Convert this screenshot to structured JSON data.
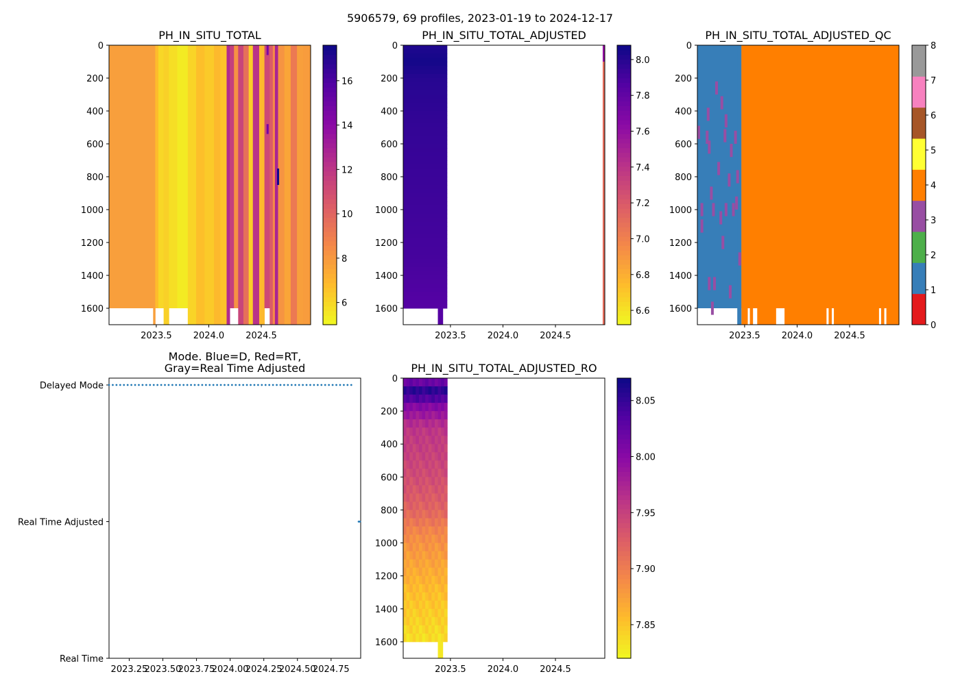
{
  "suptitle": "5906579, 69 profiles, 2023-01-19 to 2024-12-17",
  "chart_data": [
    {
      "id": "raw",
      "type": "heatmap",
      "title": "PH_IN_SITU_TOTAL",
      "xlabel": "",
      "ylabel": "",
      "xlim": [
        2023.05,
        2024.97
      ],
      "ylim": [
        1700,
        0
      ],
      "x_ticks": [
        2023.5,
        2024.0,
        2024.5
      ],
      "x_tick_labels": [
        "2023.5",
        "2024.0",
        "2024.5"
      ],
      "y_ticks": [
        0,
        200,
        400,
        600,
        800,
        1000,
        1200,
        1400,
        1600
      ],
      "y_tick_labels": [
        "0",
        "200",
        "400",
        "600",
        "800",
        "1000",
        "1200",
        "1400",
        "1600"
      ],
      "colormap": "plasma_r",
      "colorbar": {
        "min": 5.0,
        "max": 17.6,
        "ticks": [
          6,
          8,
          10,
          12,
          14,
          16
        ],
        "tick_labels": [
          "6",
          "8",
          "10",
          "12",
          "14",
          "16"
        ]
      },
      "columns": [
        {
          "x0": 2023.05,
          "x1": 2023.47,
          "value": 7.8,
          "bottom": 1600
        },
        {
          "x0": 2023.47,
          "x1": 2023.49,
          "value": 7.8,
          "bottom": 1700
        },
        {
          "x0": 2023.49,
          "x1": 2023.52,
          "value": 6.8,
          "bottom": 1600
        },
        {
          "x0": 2023.52,
          "x1": 2023.57,
          "value": 6.0,
          "bottom": 1600
        },
        {
          "x0": 2023.57,
          "x1": 2023.62,
          "value": 6.2,
          "bottom": 1700
        },
        {
          "x0": 2023.62,
          "x1": 2023.7,
          "value": 5.8,
          "bottom": 1600
        },
        {
          "x0": 2023.7,
          "x1": 2023.8,
          "value": 5.4,
          "bottom": 1600
        },
        {
          "x0": 2023.8,
          "x1": 2023.88,
          "value": 6.1,
          "bottom": 1700
        },
        {
          "x0": 2023.88,
          "x1": 2023.96,
          "value": 6.7,
          "bottom": 1700
        },
        {
          "x0": 2023.96,
          "x1": 2024.05,
          "value": 6.4,
          "bottom": 1700
        },
        {
          "x0": 2024.05,
          "x1": 2024.11,
          "value": 6.9,
          "bottom": 1700
        },
        {
          "x0": 2024.11,
          "x1": 2024.17,
          "value": 6.6,
          "bottom": 1700
        },
        {
          "x0": 2024.17,
          "x1": 2024.2,
          "value": 12.5,
          "bottom": 1700
        },
        {
          "x0": 2024.2,
          "x1": 2024.24,
          "value": 11.6,
          "bottom": 1600
        },
        {
          "x0": 2024.24,
          "x1": 2024.28,
          "value": 8.3,
          "bottom": 1600
        },
        {
          "x0": 2024.28,
          "x1": 2024.33,
          "value": 11.4,
          "bottom": 1700
        },
        {
          "x0": 2024.33,
          "x1": 2024.38,
          "value": 9.6,
          "bottom": 1700
        },
        {
          "x0": 2024.38,
          "x1": 2024.42,
          "value": 6.3,
          "bottom": 1700
        },
        {
          "x0": 2024.42,
          "x1": 2024.48,
          "value": 12.2,
          "bottom": 1700
        },
        {
          "x0": 2024.48,
          "x1": 2024.53,
          "value": 6.9,
          "bottom": 1700
        },
        {
          "x0": 2024.53,
          "x1": 2024.58,
          "value": 11.2,
          "bottom": 1600
        },
        {
          "x0": 2024.58,
          "x1": 2024.61,
          "value": 10.4,
          "bottom": 1700
        },
        {
          "x0": 2024.61,
          "x1": 2024.63,
          "value": 8.5,
          "bottom": 1700
        },
        {
          "x0": 2024.63,
          "x1": 2024.66,
          "value": 12.8,
          "bottom": 1700
        },
        {
          "x0": 2024.66,
          "x1": 2024.72,
          "value": 8.2,
          "bottom": 1700
        },
        {
          "x0": 2024.72,
          "x1": 2024.78,
          "value": 7.6,
          "bottom": 1700
        },
        {
          "x0": 2024.78,
          "x1": 2024.84,
          "value": 9.2,
          "bottom": 1700
        },
        {
          "x0": 2024.84,
          "x1": 2024.9,
          "value": 7.8,
          "bottom": 1700
        },
        {
          "x0": 2024.9,
          "x1": 2024.97,
          "value": 7.9,
          "bottom": 1700
        }
      ],
      "highlights": [
        {
          "x0": 2024.65,
          "x1": 2024.67,
          "y0": 750,
          "y1": 850,
          "value": 17.5
        },
        {
          "x0": 2024.55,
          "x1": 2024.57,
          "y0": 480,
          "y1": 540,
          "value": 14.8
        },
        {
          "x0": 2024.55,
          "x1": 2024.57,
          "y0": 0,
          "y1": 60,
          "value": 14.5
        }
      ]
    },
    {
      "id": "adjusted",
      "type": "heatmap",
      "title": "PH_IN_SITU_TOTAL_ADJUSTED",
      "xlabel": "",
      "ylabel": "",
      "xlim": [
        2023.05,
        2024.97
      ],
      "ylim": [
        1700,
        0
      ],
      "x_ticks": [
        2023.5,
        2024.0,
        2024.5
      ],
      "x_tick_labels": [
        "2023.5",
        "2024.0",
        "2024.5"
      ],
      "y_ticks": [
        0,
        200,
        400,
        600,
        800,
        1000,
        1200,
        1400,
        1600
      ],
      "y_tick_labels": [
        "0",
        "200",
        "400",
        "600",
        "800",
        "1000",
        "1200",
        "1400",
        "1600"
      ],
      "colormap": "plasma_r",
      "colorbar": {
        "min": 6.52,
        "max": 8.08,
        "ticks": [
          6.6,
          6.8,
          7.0,
          7.2,
          7.4,
          7.6,
          7.8,
          8.0
        ],
        "tick_labels": [
          "6.6",
          "6.8",
          "7.0",
          "7.2",
          "7.4",
          "7.6",
          "7.8",
          "8.0"
        ]
      },
      "depth_profile": [
        [
          0,
          8.02
        ],
        [
          100,
          8.06
        ],
        [
          200,
          8.0
        ],
        [
          500,
          7.96
        ],
        [
          900,
          7.93
        ],
        [
          1300,
          7.9
        ],
        [
          1600,
          7.85
        ]
      ],
      "filled_x": [
        2023.05,
        2023.47
      ],
      "bottom": 1600,
      "tail": {
        "x0": 2023.38,
        "x1": 2023.43,
        "y0": 1600,
        "y1": 1700,
        "value": 7.85
      },
      "last_column": {
        "x0": 2024.95,
        "x1": 2024.97,
        "values": [
          [
            0,
            7.6
          ],
          [
            100,
            7.1
          ],
          [
            1700,
            6.9
          ]
        ]
      }
    },
    {
      "id": "qc",
      "type": "heatmap",
      "title": "PH_IN_SITU_TOTAL_ADJUSTED_QC",
      "xlabel": "",
      "ylabel": "",
      "xlim": [
        2023.05,
        2024.97
      ],
      "ylim": [
        1700,
        0
      ],
      "x_ticks": [
        2023.5,
        2024.0,
        2024.5
      ],
      "x_tick_labels": [
        "2023.5",
        "2024.0",
        "2024.5"
      ],
      "y_ticks": [
        0,
        200,
        400,
        600,
        800,
        1000,
        1200,
        1400,
        1600
      ],
      "y_tick_labels": [
        "0",
        "200",
        "400",
        "600",
        "800",
        "1000",
        "1200",
        "1400",
        "1600"
      ],
      "colorbar": {
        "min": 0,
        "max": 8,
        "ticks": [
          0,
          1,
          2,
          3,
          4,
          5,
          6,
          7,
          8
        ],
        "tick_labels": [
          "0",
          "1",
          "2",
          "3",
          "4",
          "5",
          "6",
          "7",
          "8"
        ],
        "classes": [
          "#e41a1c",
          "#377eb8",
          "#4daf4a",
          "#984ea3",
          "#ff7f00",
          "#ffff33",
          "#a65628",
          "#f781bf",
          "#999999"
        ]
      },
      "blocks": [
        {
          "x0": 2023.05,
          "x1": 2023.47,
          "flag": 1,
          "bottom": 1600
        },
        {
          "x0": 2023.43,
          "x1": 2023.47,
          "flag": 1,
          "bottom": 1700
        },
        {
          "x0": 2023.47,
          "x1": 2024.95,
          "flag": 4,
          "bottom": 1600
        },
        {
          "x0": 2023.47,
          "x1": 2024.97,
          "flag": 4,
          "bottom": 1700
        }
      ],
      "gaps": [
        [
          2023.53,
          2023.55
        ],
        [
          2023.58,
          2023.62
        ],
        [
          2023.8,
          2023.88
        ],
        [
          2024.28,
          2024.3
        ],
        [
          2024.33,
          2024.35
        ],
        [
          2024.78,
          2024.8
        ],
        [
          2024.83,
          2024.85
        ]
      ],
      "flag3_marks": [
        [
          2023.05,
          530
        ],
        [
          2023.08,
          1000
        ],
        [
          2023.08,
          1100
        ],
        [
          2023.14,
          420
        ],
        [
          2023.13,
          560
        ],
        [
          2023.15,
          620
        ],
        [
          2023.17,
          900
        ],
        [
          2023.19,
          1000
        ],
        [
          2023.15,
          1450
        ],
        [
          2023.18,
          1600
        ],
        [
          2023.22,
          260
        ],
        [
          2023.24,
          750
        ],
        [
          2023.26,
          1050
        ],
        [
          2023.27,
          350
        ],
        [
          2023.28,
          1200
        ],
        [
          2023.31,
          460
        ],
        [
          2023.31,
          1000
        ],
        [
          2023.3,
          550
        ],
        [
          2023.34,
          820
        ],
        [
          2023.35,
          1500
        ],
        [
          2023.38,
          1000
        ],
        [
          2023.4,
          560
        ],
        [
          2023.41,
          960
        ],
        [
          2023.42,
          800
        ],
        [
          2023.44,
          1300
        ],
        [
          2023.2,
          1450
        ],
        [
          2023.36,
          640
        ]
      ]
    },
    {
      "id": "mode",
      "type": "scatter",
      "title_lines": [
        "Mode. Blue=D, Red=RT,",
        "Gray=Real Time Adjusted"
      ],
      "xlabel": "",
      "ylabel": "",
      "xlim": [
        2023.1,
        2024.97
      ],
      "x_ticks": [
        2023.25,
        2023.5,
        2023.75,
        2024.0,
        2024.25,
        2024.5,
        2024.75
      ],
      "x_tick_labels": [
        "2023.25",
        "2023.50",
        "2023.75",
        "2024.00",
        "2024.25",
        "2024.50",
        "2024.75"
      ],
      "y_categories": [
        "Real Time",
        "Real Time Adjusted",
        "Delayed Mode"
      ],
      "point_color": "#1f77b4",
      "delayed_range": [
        2023.1,
        2024.9
      ],
      "delayed_count": 66,
      "adjusted_points": [
        2024.955,
        2024.97
      ]
    },
    {
      "id": "ro",
      "type": "heatmap",
      "title": "PH_IN_SITU_TOTAL_ADJUSTED_RO",
      "xlabel": "",
      "ylabel": "",
      "xlim": [
        2023.05,
        2024.97
      ],
      "ylim": [
        1700,
        0
      ],
      "x_ticks": [
        2023.5,
        2024.0,
        2024.5
      ],
      "x_tick_labels": [
        "2023.5",
        "2024.0",
        "2024.5"
      ],
      "y_ticks": [
        0,
        200,
        400,
        600,
        800,
        1000,
        1200,
        1400,
        1600
      ],
      "y_tick_labels": [
        "0",
        "200",
        "400",
        "600",
        "800",
        "1000",
        "1200",
        "1400",
        "1600"
      ],
      "colormap": "plasma_r",
      "colorbar": {
        "min": 7.82,
        "max": 8.07,
        "ticks": [
          7.85,
          7.9,
          7.95,
          8.0,
          8.05
        ],
        "tick_labels": [
          "7.85",
          "7.90",
          "7.95",
          "8.00",
          "8.05"
        ]
      },
      "depth_profile": [
        [
          0,
          8.0
        ],
        [
          60,
          8.05
        ],
        [
          100,
          8.06
        ],
        [
          150,
          8.01
        ],
        [
          300,
          7.96
        ],
        [
          600,
          7.94
        ],
        [
          800,
          7.92
        ],
        [
          950,
          7.89
        ],
        [
          1150,
          7.87
        ],
        [
          1300,
          7.855
        ],
        [
          1450,
          7.845
        ],
        [
          1600,
          7.835
        ]
      ],
      "filled_x": [
        2023.05,
        2023.47
      ],
      "bottom": 1600,
      "tail": {
        "x0": 2023.38,
        "x1": 2023.43,
        "y0": 1600,
        "y1": 1700,
        "value": 7.83
      }
    }
  ]
}
